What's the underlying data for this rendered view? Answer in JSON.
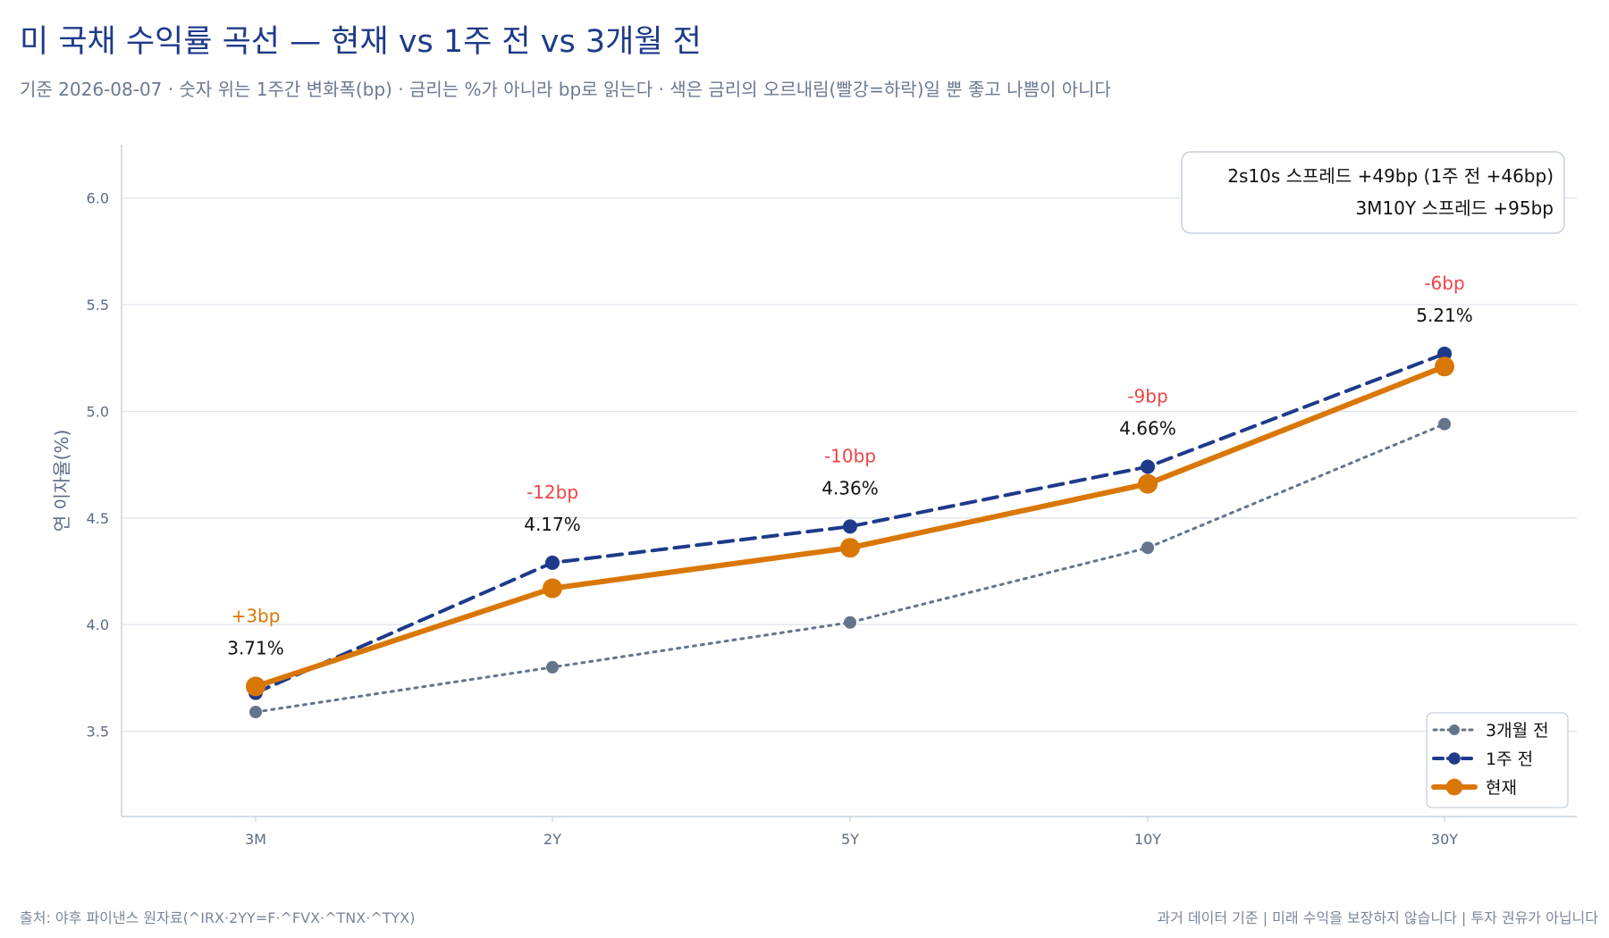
{
  "title": "미 국채 수익률 곡선 — 현재 vs 1주 전 vs 3개월 전",
  "subtitle": "기준 2026-08-07 · 숫자 위는 1주간 변화폭(bp) · 금리는 %가 아니라 bp로 읽는다 · 색은 금리의 오르내림(빨강=하락)일 뿐 좋고 나쁨이 아니다",
  "footer": {
    "source": "출처: 야후 파이낸스 원자료(^IRX·2YY=F·^FVX·^TNX·^TYX)",
    "disclaimer": "과거 데이터 기준 | 미래 수익을 보장하지 않습니다 | 투자 권유가 아닙니다"
  },
  "spread_box": {
    "line1": "2s10s 스프레드 +49bp (1주 전 +46bp)",
    "line2": "3M10Y 스프레드 +95bp"
  },
  "colors": {
    "current": "#d97706",
    "week_ago": "#1e3a8a",
    "three_months_ago": "#64748b",
    "down": "#ef4444",
    "up": "#d97706"
  },
  "chart_data": {
    "type": "line",
    "categories": [
      "3M",
      "2Y",
      "5Y",
      "10Y",
      "30Y"
    ],
    "ylabel": "연 이자율(%)",
    "xlabel": "",
    "ylim": [
      3.1,
      6.25
    ],
    "yticks": [
      "3.5",
      "4.0",
      "4.5",
      "5.0",
      "5.5",
      "6.0"
    ],
    "grid": true,
    "legend_position": "bottom-right",
    "series": [
      {
        "name": "3개월 전",
        "key": "three_months_ago",
        "style": "dotted",
        "values": [
          3.59,
          3.8,
          4.01,
          4.36,
          4.94
        ]
      },
      {
        "name": "1주 전",
        "key": "week_ago",
        "style": "dashed",
        "values": [
          3.68,
          4.29,
          4.46,
          4.74,
          5.27
        ]
      },
      {
        "name": "현재",
        "key": "current",
        "style": "solid",
        "values": [
          3.71,
          4.17,
          4.36,
          4.66,
          5.21
        ]
      }
    ],
    "value_labels": [
      "3.71%",
      "4.17%",
      "4.36%",
      "4.66%",
      "5.21%"
    ],
    "change_labels": [
      "+3bp",
      "-12bp",
      "-10bp",
      "-9bp",
      "-6bp"
    ],
    "change_direction": [
      "up",
      "down",
      "down",
      "down",
      "down"
    ]
  }
}
